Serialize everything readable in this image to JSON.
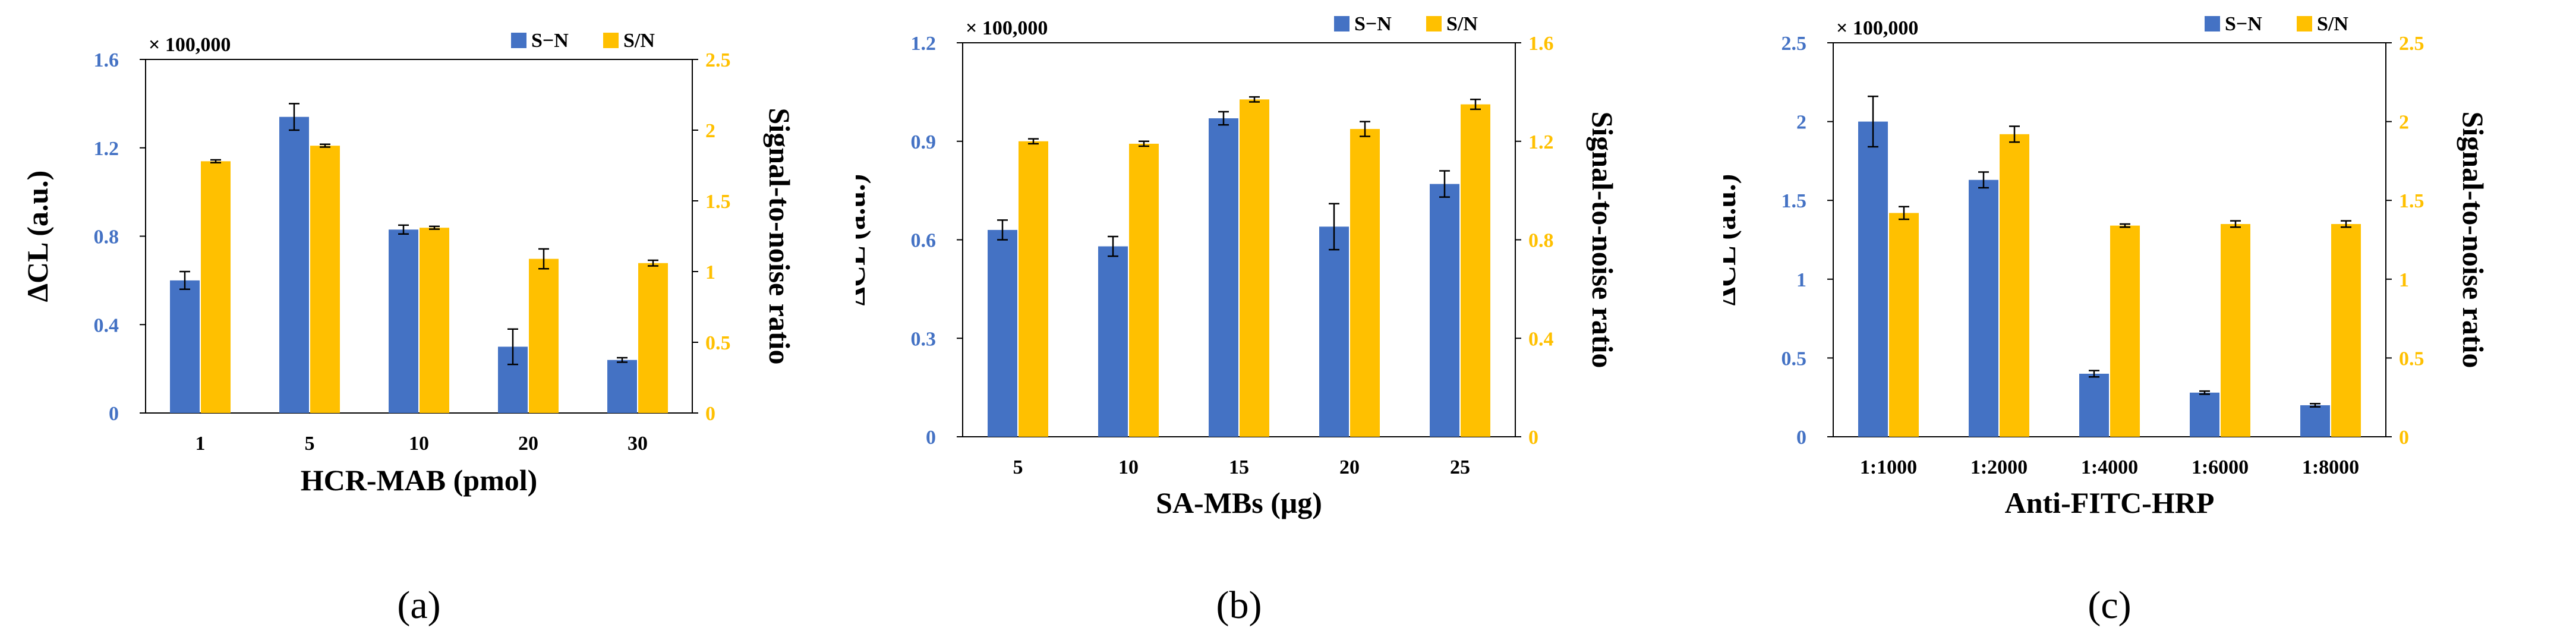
{
  "colors": {
    "sn_diff": "#4472C4",
    "sn_ratio": "#FFC000",
    "left_axis": "#4472C4",
    "right_axis": "#FFC000",
    "axis": "#000000"
  },
  "chart_data": [
    {
      "type": "bar",
      "panel_label": "(a)",
      "scale_label": "× 100,000",
      "xlabel": "HCR-MAB (pmol)",
      "ylabel": "ΔCL (a.u.)",
      "y2label": "Signal-to-noise ratio",
      "categories": [
        "1",
        "5",
        "10",
        "20",
        "30"
      ],
      "ylim": [
        0,
        1.6
      ],
      "yticks": [
        0,
        0.4,
        0.8,
        1.2,
        1.6
      ],
      "ytick_labels": [
        "0",
        "0.4",
        "0.8",
        "1.2",
        "1.6"
      ],
      "y2lim": [
        0,
        2.5
      ],
      "y2ticks": [
        0,
        0.5,
        1,
        1.5,
        2,
        2.5
      ],
      "y2tick_labels": [
        "0",
        "0.5",
        "1",
        "1.5",
        "2",
        "2.5"
      ],
      "legend": [
        "S−N",
        "S/N"
      ],
      "series": [
        {
          "name": "S−N",
          "axis": "left",
          "values": [
            0.6,
            1.34,
            0.83,
            0.3,
            0.24
          ],
          "errors": [
            0.04,
            0.06,
            0.02,
            0.08,
            0.01
          ]
        },
        {
          "name": "S/N",
          "axis": "right",
          "values": [
            1.78,
            1.89,
            1.31,
            1.09,
            1.06
          ],
          "errors": [
            0.01,
            0.01,
            0.01,
            0.07,
            0.02
          ]
        }
      ]
    },
    {
      "type": "bar",
      "panel_label": "(b)",
      "scale_label": "× 100,000",
      "xlabel": "SA-MBs (μg)",
      "ylabel": "ΔCL (a.u.)",
      "y2label": "Signal-to-noise ratio",
      "categories": [
        "5",
        "10",
        "15",
        "20",
        "25"
      ],
      "ylim": [
        0,
        1.2
      ],
      "yticks": [
        0,
        0.3,
        0.6,
        0.9,
        1.2
      ],
      "ytick_labels": [
        "0",
        "0.3",
        "0.6",
        "0.9",
        "1.2"
      ],
      "y2lim": [
        0,
        1.6
      ],
      "y2ticks": [
        0,
        0.4,
        0.8,
        1.2,
        1.6
      ],
      "y2tick_labels": [
        "0",
        "0.4",
        "0.8",
        "1.2",
        "1.6"
      ],
      "legend": [
        "S−N",
        "S/N"
      ],
      "series": [
        {
          "name": "S−N",
          "axis": "left",
          "values": [
            0.63,
            0.58,
            0.97,
            0.64,
            0.77
          ],
          "errors": [
            0.03,
            0.03,
            0.02,
            0.07,
            0.04
          ]
        },
        {
          "name": "S/N",
          "axis": "right",
          "values": [
            1.2,
            1.19,
            1.37,
            1.25,
            1.35
          ],
          "errors": [
            0.01,
            0.01,
            0.01,
            0.03,
            0.02
          ]
        }
      ]
    },
    {
      "type": "bar",
      "panel_label": "(c)",
      "scale_label": "× 100,000",
      "xlabel": "Anti-FITC-HRP",
      "ylabel": "ΔCL (a.u.)",
      "y2label": "Signal-to-noise ratio",
      "categories": [
        "1:1000",
        "1:2000",
        "1:4000",
        "1:6000",
        "1:8000"
      ],
      "ylim": [
        0,
        2.5
      ],
      "yticks": [
        0,
        0.5,
        1,
        1.5,
        2,
        2.5
      ],
      "ytick_labels": [
        "0",
        "0.5",
        "1",
        "1.5",
        "2",
        "2.5"
      ],
      "y2lim": [
        0,
        2.5
      ],
      "y2ticks": [
        0,
        0.5,
        1,
        1.5,
        2,
        2.5
      ],
      "y2tick_labels": [
        "0",
        "0.5",
        "1",
        "1.5",
        "2",
        "2.5"
      ],
      "legend": [
        "S−N",
        "S/N"
      ],
      "series": [
        {
          "name": "S−N",
          "axis": "left",
          "values": [
            2.0,
            1.63,
            0.4,
            0.28,
            0.2
          ],
          "errors": [
            0.16,
            0.05,
            0.02,
            0.01,
            0.01
          ]
        },
        {
          "name": "S/N",
          "axis": "right",
          "values": [
            1.42,
            1.92,
            1.34,
            1.35,
            1.35
          ],
          "errors": [
            0.04,
            0.05,
            0.01,
            0.02,
            0.02
          ]
        }
      ]
    }
  ]
}
